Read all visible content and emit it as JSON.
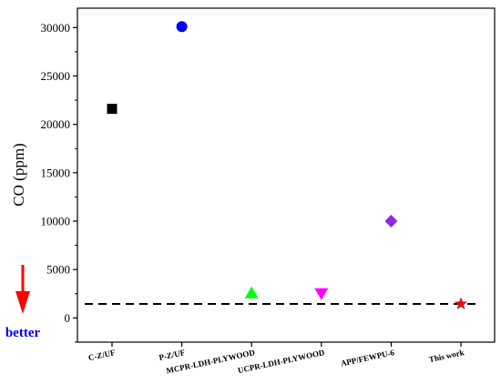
{
  "chart_data": {
    "type": "scatter",
    "title": "",
    "xlabel": "",
    "ylabel": "CO (ppm)",
    "ylim": [
      -2500,
      32000
    ],
    "yticks": [
      0,
      5000,
      10000,
      15000,
      20000,
      25000,
      30000
    ],
    "categories": [
      "C-Z/UF",
      "P-Z/UF",
      "MCPR-LDH-PLYWOOD",
      "UCPR-LDH-PLYWOOD",
      "APP/FEWPU-6",
      "This work"
    ],
    "points": [
      {
        "category": "C-Z/UF",
        "value": 21600,
        "marker": "square",
        "color": "#000000"
      },
      {
        "category": "P-Z/UF",
        "value": 30100,
        "marker": "circle",
        "color": "#0000ff"
      },
      {
        "category": "MCPR-LDH-PLYWOOD",
        "value": 2600,
        "marker": "triangle-up",
        "color": "#00ff00"
      },
      {
        "category": "UCPR-LDH-PLYWOOD",
        "value": 2500,
        "marker": "triangle-down",
        "color": "#ff00ff"
      },
      {
        "category": "APP/FEWPU-6",
        "value": 10000,
        "marker": "diamond",
        "color": "#8a2be2"
      },
      {
        "category": "This work",
        "value": 1450,
        "marker": "star",
        "color": "#dd1111"
      }
    ],
    "reference_line": {
      "value": 1450,
      "style": "dashed",
      "color": "#000000"
    },
    "annotation": {
      "text": "better",
      "arrow": "down",
      "arrow_color": "#ff0000",
      "text_color": "#0000ee"
    },
    "grid": false,
    "legend": "none"
  }
}
